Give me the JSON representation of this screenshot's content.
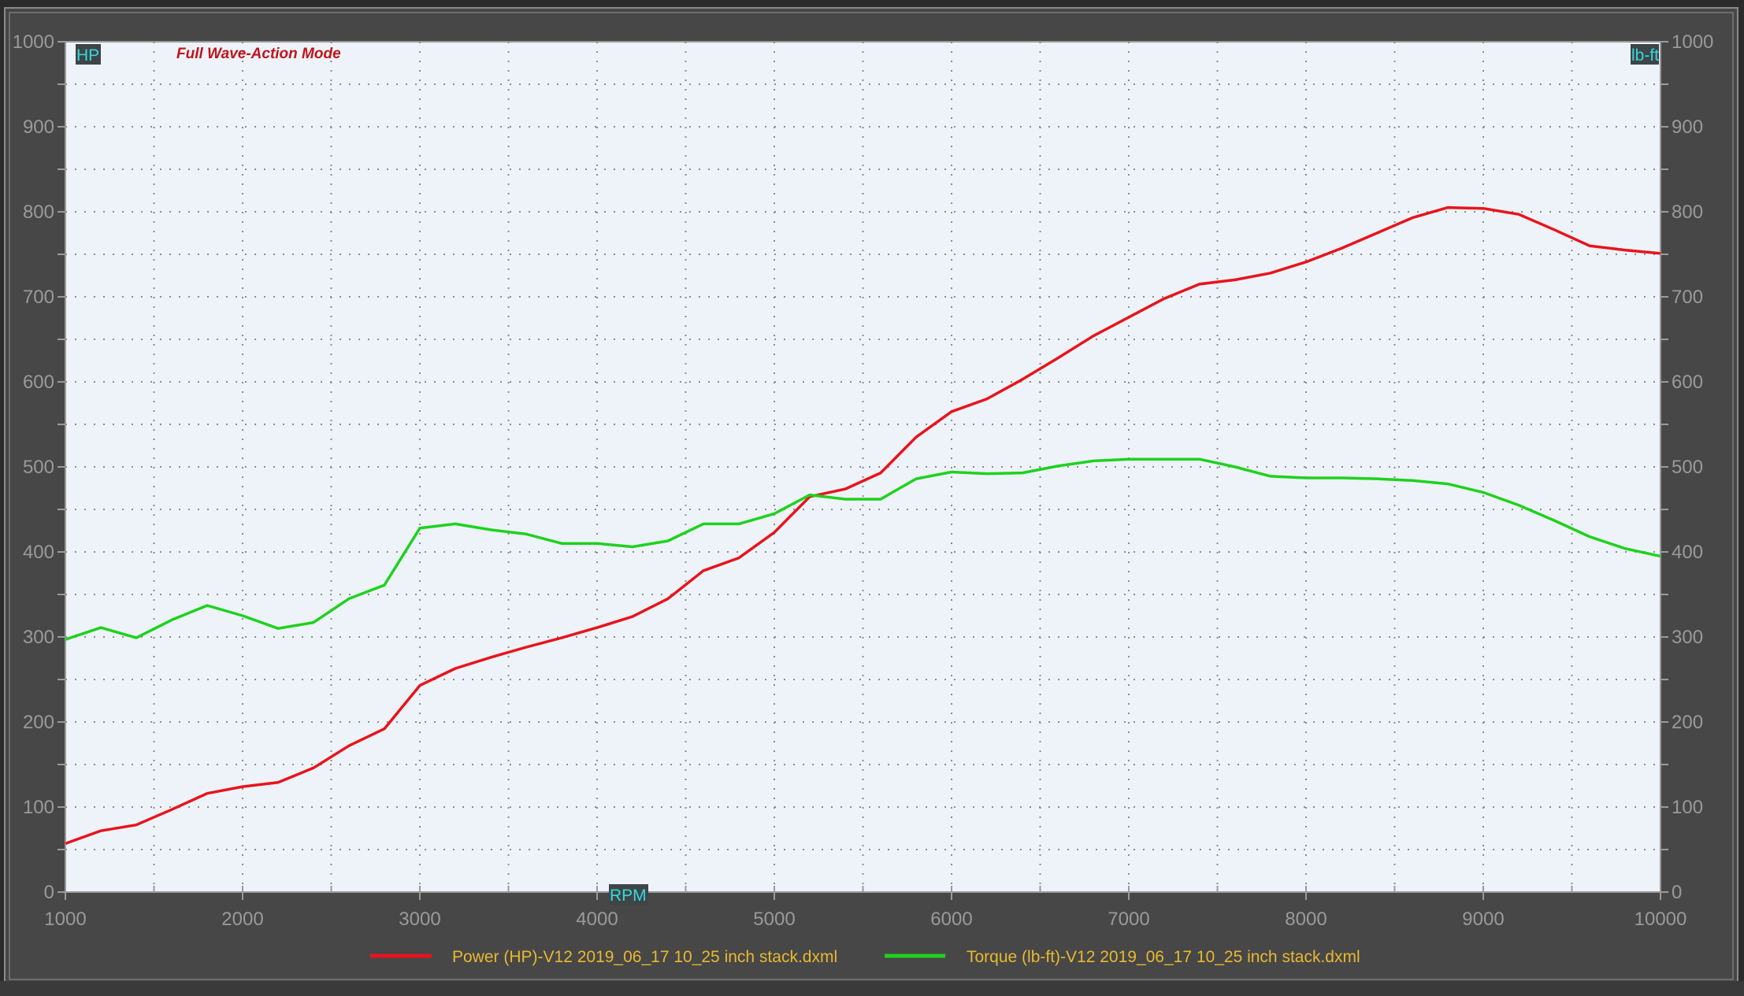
{
  "chart_data": {
    "type": "line",
    "title": "Full Wave-Action Mode",
    "xlabel": "RPM",
    "ylabel_left": "HP",
    "ylabel_right": "lb-ft",
    "xlim": [
      1000,
      10000
    ],
    "ylim": [
      0,
      1000
    ],
    "x_ticks": [
      1000,
      2000,
      3000,
      4000,
      5000,
      6000,
      7000,
      8000,
      9000,
      10000
    ],
    "y_ticks": [
      0,
      100,
      200,
      300,
      400,
      500,
      600,
      700,
      800,
      900,
      1000
    ],
    "grid": true,
    "legend_position": "bottom",
    "x": [
      1000,
      1200,
      1400,
      1600,
      1800,
      2000,
      2200,
      2400,
      2600,
      2800,
      3000,
      3200,
      3400,
      3600,
      3800,
      4000,
      4200,
      4400,
      4600,
      4800,
      5000,
      5200,
      5400,
      5600,
      5800,
      6000,
      6200,
      6400,
      6600,
      6800,
      7000,
      7200,
      7400,
      7600,
      7800,
      8000,
      8200,
      8400,
      8600,
      8800,
      9000,
      9200,
      9400,
      9600,
      9800,
      10000
    ],
    "series": [
      {
        "name": "Power (HP)-V12 2019_06_17 10_25 inch stack.dxml",
        "color": "#e8141c",
        "values": [
          57,
          72,
          79,
          97,
          116,
          124,
          129,
          146,
          172,
          192,
          243,
          263,
          276,
          288,
          299,
          311,
          324,
          345,
          378,
          393,
          423,
          465,
          474,
          493,
          535,
          565,
          580,
          603,
          628,
          654,
          676,
          698,
          715,
          720,
          728,
          741,
          757,
          775,
          793,
          805,
          804,
          797,
          779,
          760,
          755,
          751
        ]
      },
      {
        "name": "Torque (lb-ft)-V12 2019_06_17 10_25 inch stack.dxml",
        "color": "#1ed21e",
        "values": [
          297,
          311,
          299,
          320,
          337,
          325,
          310,
          317,
          345,
          361,
          428,
          433,
          426,
          421,
          410,
          410,
          406,
          413,
          433,
          433,
          445,
          467,
          462,
          462,
          486,
          494,
          492,
          493,
          501,
          507,
          509,
          509,
          509,
          500,
          489,
          487,
          487,
          486,
          484,
          480,
          470,
          455,
          437,
          418,
          404,
          395
        ]
      }
    ]
  }
}
